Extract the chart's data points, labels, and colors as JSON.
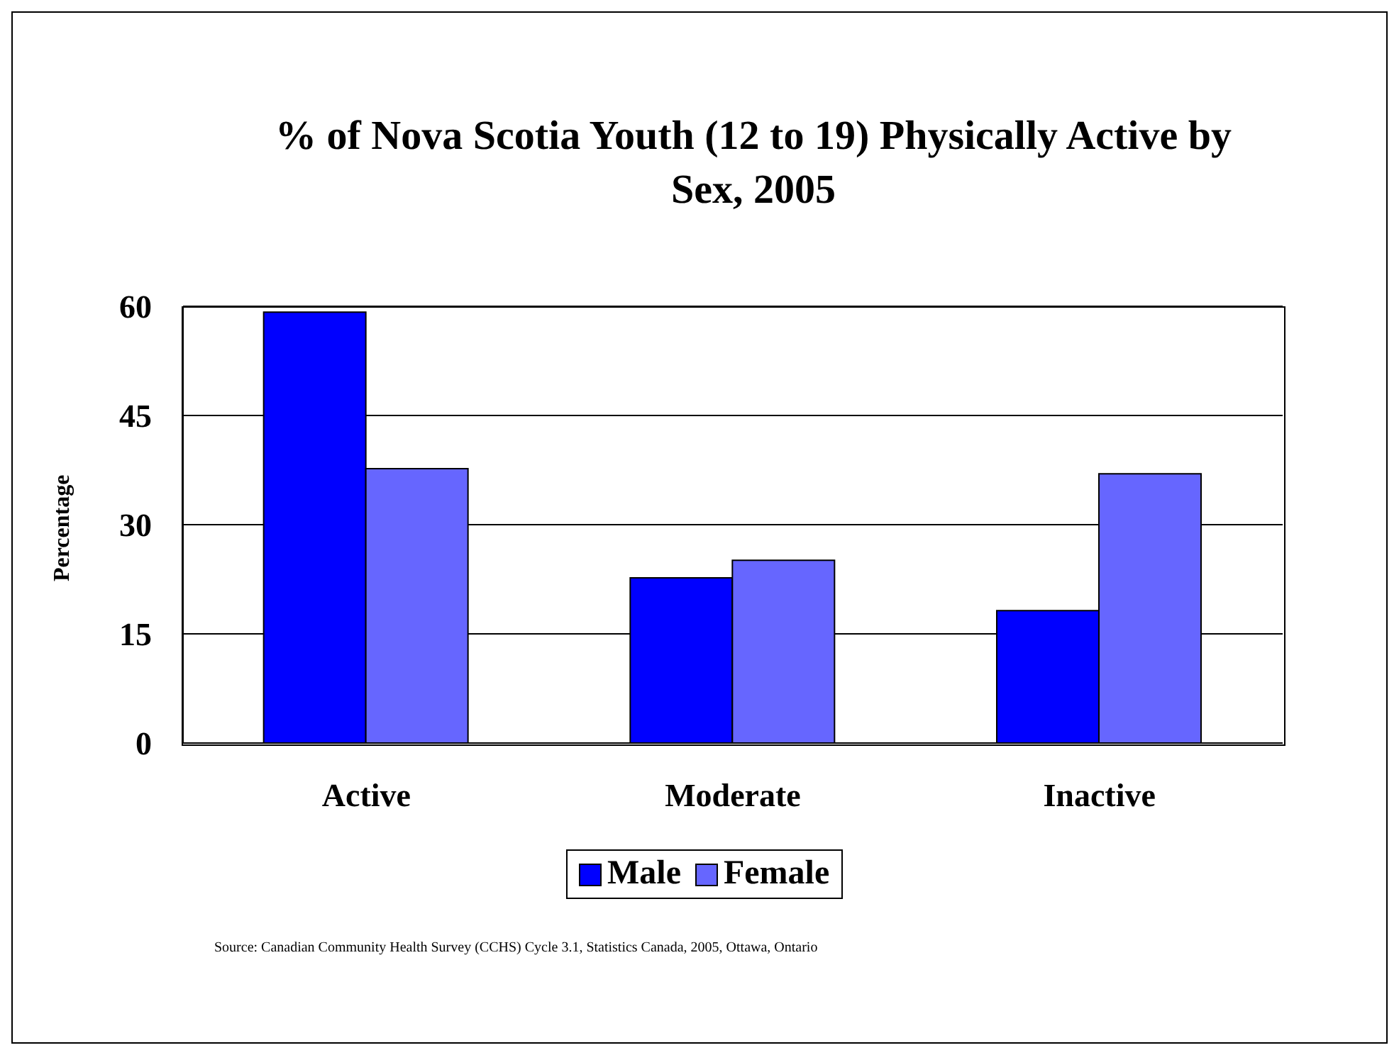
{
  "chart_data": {
    "type": "bar",
    "title": "% of Nova Scotia Youth (12 to 19) Physically Active by Sex, 2005",
    "ylabel": "Percentage",
    "categories": [
      "Active",
      "Moderate",
      "Inactive"
    ],
    "series": [
      {
        "name": "Male",
        "color": "#0000ff",
        "values": [
          59.2,
          22.7,
          18.2
        ]
      },
      {
        "name": "Female",
        "color": "#6666ff",
        "values": [
          37.7,
          25.1,
          37.0
        ]
      }
    ],
    "ylim": [
      0,
      60
    ],
    "yticks": [
      0,
      15,
      30,
      45,
      60
    ],
    "grid": "y",
    "legend": "bottom",
    "annotations": [
      "Source:  Canadian Community Health Survey (CCHS) Cycle 3.1, Statistics Canada, 2005, Ottawa, Ontario"
    ]
  }
}
